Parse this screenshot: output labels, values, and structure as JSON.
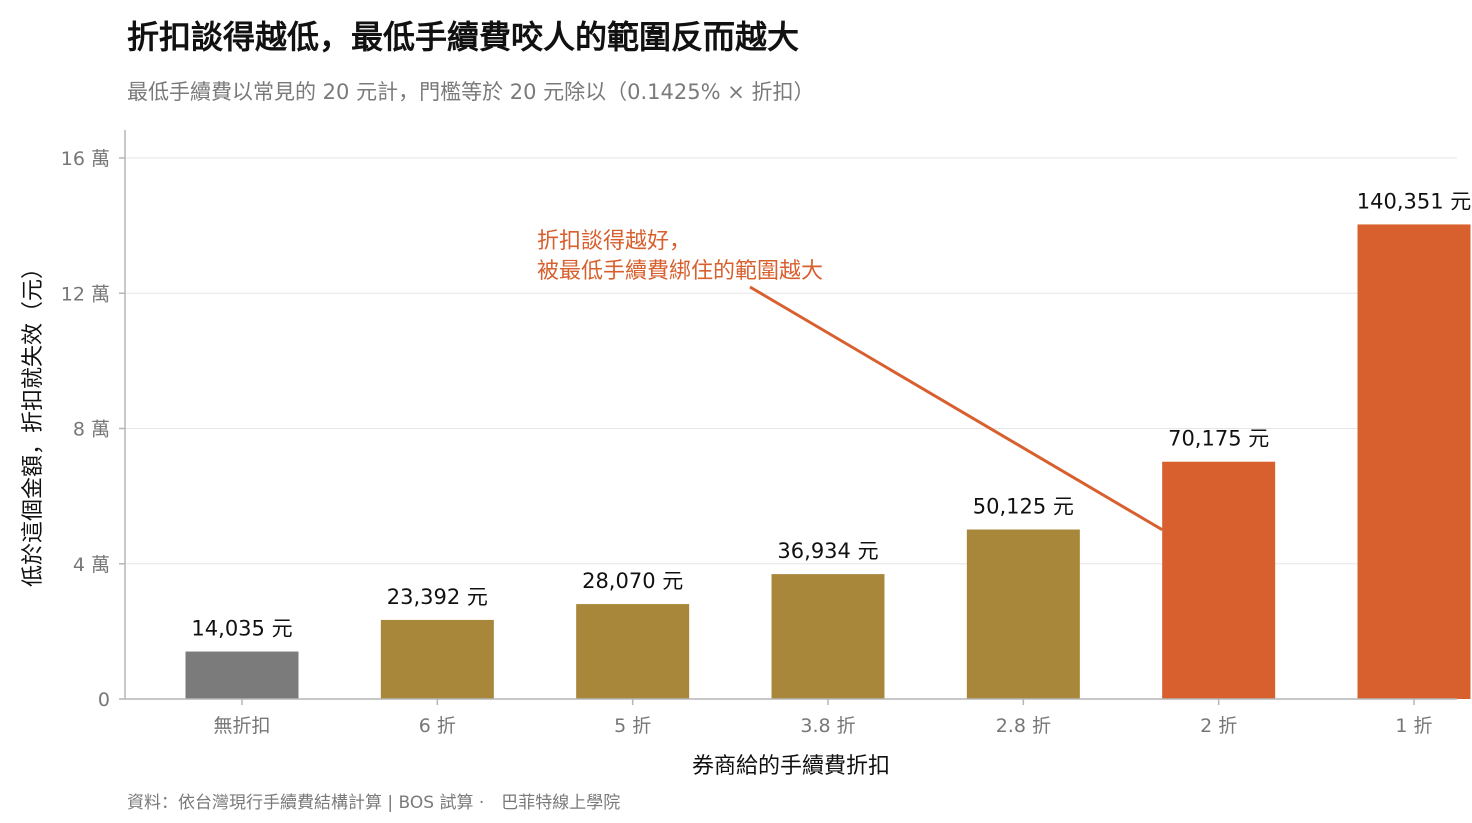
{
  "title": "折扣談得越低，最低手續費咬人的範圍反而越大",
  "subtitle": "最低手續費以常見的 20 元計，門檻等於 20 元除以（0.1425% × 折扣）",
  "source": "資料：依台灣現行手續費結構計算 | BOS 試算 ·　巴菲特線上學院",
  "colors": {
    "gray": "#7b7b7b",
    "gold": "#a8873a",
    "orange": "#d8602f"
  },
  "chart_data": {
    "type": "bar",
    "categories": [
      "無折扣",
      "6 折",
      "5 折",
      "3.8 折",
      "2.8 折",
      "2 折",
      "1 折"
    ],
    "values": [
      14035,
      23392,
      28070,
      36934,
      50125,
      70175,
      140351
    ],
    "value_labels": [
      "14,035 元",
      "23,392 元",
      "28,070 元",
      "36,934 元",
      "50,125 元",
      "70,175 元",
      "140,351 元"
    ],
    "bar_color_keys": [
      "gray",
      "gold",
      "gold",
      "gold",
      "gold",
      "orange",
      "orange"
    ],
    "xlabel": "券商給的手續費折扣",
    "ylabel": "低於這個金額，折扣就失效（元）",
    "ylim": [
      0,
      160000
    ],
    "yticks": [
      0,
      40000,
      80000,
      120000,
      160000
    ],
    "ytick_labels": [
      "0",
      "4 萬",
      "8 萬",
      "12 萬",
      "16 萬"
    ],
    "grid": true,
    "annotation": {
      "lines": [
        "折扣談得越好，",
        "被最低手續費綁住的範圍越大"
      ],
      "target_category": "2 折"
    }
  }
}
